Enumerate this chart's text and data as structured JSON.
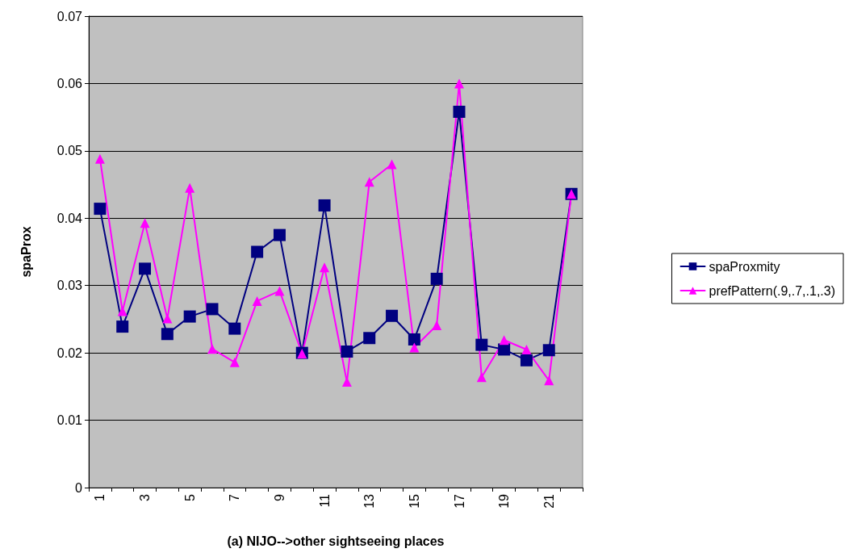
{
  "chart_data": {
    "type": "line",
    "xlabel": "(a) NIJO-->other sightseeing places",
    "ylabel": "spaProx",
    "categories": [
      "1",
      null,
      "3",
      null,
      "5",
      null,
      "7",
      null,
      "9",
      null,
      "11",
      null,
      "13",
      null,
      "15",
      null,
      "17",
      null,
      "19",
      null,
      "21",
      null
    ],
    "series": [
      {
        "name": "spaProxmity",
        "color": "#000080",
        "marker": "square",
        "values": [
          0.0414,
          0.0239,
          0.0325,
          0.0228,
          0.0254,
          0.0265,
          0.0236,
          0.035,
          0.0375,
          0.02,
          0.0419,
          0.0202,
          0.0222,
          0.0255,
          0.022,
          0.031,
          0.0558,
          0.0212,
          0.0205,
          0.0189,
          0.0204,
          0.0436
        ]
      },
      {
        "name": "prefPattern(.9,.7,.1,.3)",
        "color": "#ff00ff",
        "marker": "triangle",
        "values": [
          0.0488,
          0.0262,
          0.0393,
          0.0251,
          0.0445,
          0.0206,
          0.0186,
          0.0277,
          0.0292,
          0.0199,
          0.0327,
          0.0157,
          0.0454,
          0.048,
          0.0208,
          0.0241,
          0.06,
          0.0164,
          0.0219,
          0.0205,
          0.0159,
          0.0436
        ]
      }
    ],
    "ylim": [
      0,
      0.07
    ],
    "yticks": [
      0,
      0.01,
      0.02,
      0.03,
      0.04,
      0.05,
      0.06,
      0.07
    ],
    "grid": "y",
    "legend": "right",
    "line_style": "solid"
  }
}
